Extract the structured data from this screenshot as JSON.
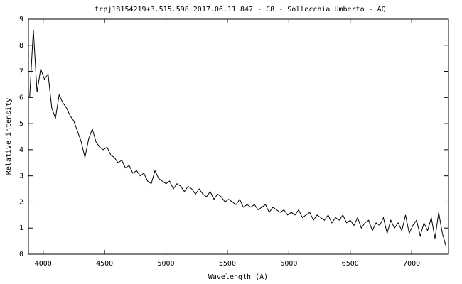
{
  "chart_data": {
    "type": "line",
    "title": "_tcpj18154219+3.515.598_2017.06.11_847 - C8 - Sollecchia Umberto - AQ",
    "x_label": "Wavelength (A)",
    "y_label": "Relative intensity",
    "color": "#000000",
    "xlim": [
      3880,
      7300
    ],
    "ylim": [
      0,
      9
    ],
    "xticks": [
      4000,
      4500,
      5000,
      5500,
      6000,
      6500,
      7000
    ],
    "yticks": [
      0,
      1,
      2,
      3,
      4,
      5,
      6,
      7,
      8,
      9
    ],
    "x": [
      3890,
      3920,
      3950,
      3980,
      4010,
      4040,
      4070,
      4100,
      4130,
      4160,
      4190,
      4220,
      4250,
      4280,
      4310,
      4340,
      4370,
      4400,
      4430,
      4460,
      4490,
      4520,
      4550,
      4580,
      4610,
      4640,
      4670,
      4700,
      4730,
      4760,
      4790,
      4820,
      4850,
      4880,
      4910,
      4940,
      4970,
      5000,
      5030,
      5060,
      5090,
      5120,
      5150,
      5180,
      5210,
      5240,
      5270,
      5300,
      5330,
      5360,
      5390,
      5420,
      5450,
      5480,
      5510,
      5540,
      5570,
      5600,
      5630,
      5660,
      5690,
      5720,
      5750,
      5780,
      5810,
      5840,
      5870,
      5900,
      5930,
      5960,
      5990,
      6020,
      6050,
      6080,
      6110,
      6140,
      6170,
      6200,
      6230,
      6260,
      6290,
      6320,
      6350,
      6380,
      6410,
      6440,
      6470,
      6500,
      6530,
      6560,
      6590,
      6620,
      6650,
      6680,
      6710,
      6740,
      6770,
      6800,
      6830,
      6860,
      6890,
      6920,
      6950,
      6980,
      7010,
      7040,
      7070,
      7100,
      7130,
      7160,
      7190,
      7220,
      7250,
      7280
    ],
    "values": [
      6.0,
      8.6,
      6.2,
      7.1,
      6.7,
      6.9,
      5.6,
      5.2,
      6.1,
      5.8,
      5.6,
      5.3,
      5.1,
      4.7,
      4.3,
      3.7,
      4.4,
      4.8,
      4.3,
      4.1,
      4.0,
      4.1,
      3.8,
      3.7,
      3.5,
      3.6,
      3.3,
      3.4,
      3.1,
      3.2,
      3.0,
      3.1,
      2.8,
      2.7,
      3.2,
      2.9,
      2.8,
      2.7,
      2.8,
      2.5,
      2.7,
      2.6,
      2.4,
      2.6,
      2.5,
      2.3,
      2.5,
      2.3,
      2.2,
      2.4,
      2.1,
      2.3,
      2.2,
      2.0,
      2.1,
      2.0,
      1.9,
      2.1,
      1.8,
      1.9,
      1.8,
      1.9,
      1.7,
      1.8,
      1.9,
      1.6,
      1.8,
      1.7,
      1.6,
      1.7,
      1.5,
      1.6,
      1.5,
      1.7,
      1.4,
      1.5,
      1.6,
      1.3,
      1.5,
      1.4,
      1.3,
      1.5,
      1.2,
      1.4,
      1.3,
      1.5,
      1.2,
      1.3,
      1.1,
      1.4,
      1.0,
      1.2,
      1.3,
      0.9,
      1.2,
      1.1,
      1.4,
      0.8,
      1.3,
      1.0,
      1.2,
      0.9,
      1.5,
      0.8,
      1.1,
      1.3,
      0.7,
      1.2,
      0.9,
      1.4,
      0.6,
      1.6,
      0.8,
      0.3
    ]
  }
}
